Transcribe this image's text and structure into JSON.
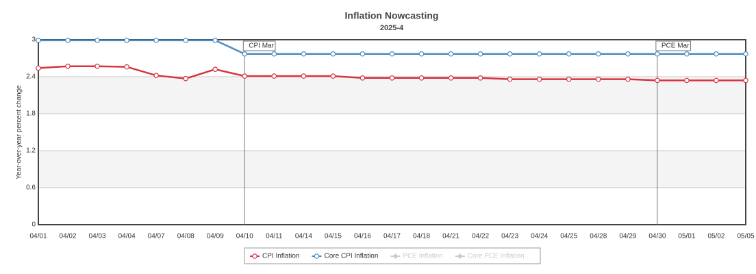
{
  "chart_data": {
    "type": "line",
    "title": "Inflation Nowcasting",
    "subtitle": "2025-4",
    "y_label": "Year-over-year percent change",
    "categories": [
      "04/01",
      "04/02",
      "04/03",
      "04/04",
      "04/07",
      "04/08",
      "04/09",
      "04/10",
      "04/11",
      "04/14",
      "04/15",
      "04/16",
      "04/17",
      "04/18",
      "04/21",
      "04/22",
      "04/23",
      "04/24",
      "04/25",
      "04/28",
      "04/29",
      "04/30",
      "05/01",
      "05/02",
      "05/05"
    ],
    "series": [
      {
        "name": "CPI Inflation",
        "color": "#d9333f",
        "values": [
          2.54,
          2.57,
          2.57,
          2.56,
          2.42,
          2.37,
          2.52,
          2.41,
          2.41,
          2.41,
          2.41,
          2.38,
          2.38,
          2.38,
          2.38,
          2.38,
          2.36,
          2.36,
          2.36,
          2.36,
          2.36,
          2.34,
          2.34,
          2.34,
          2.34
        ]
      },
      {
        "name": "Core CPI Inflation",
        "color": "#4a8cc4",
        "values": [
          2.99,
          2.99,
          2.99,
          2.99,
          2.99,
          2.99,
          2.99,
          2.77,
          2.77,
          2.77,
          2.77,
          2.77,
          2.77,
          2.77,
          2.77,
          2.77,
          2.77,
          2.77,
          2.77,
          2.77,
          2.77,
          2.77,
          2.77,
          2.77,
          2.77
        ]
      },
      {
        "name": "PCE Inflation",
        "color": "#cccccc",
        "visible": false
      },
      {
        "name": "Core PCE Inflation",
        "color": "#cccccc",
        "visible": false
      }
    ],
    "annotations": [
      {
        "label": "CPI Mar",
        "category": "04/10"
      },
      {
        "label": "PCE Mar",
        "category": "04/30"
      }
    ],
    "ylim": [
      0,
      3
    ],
    "yticks": [
      0,
      0.6,
      1.2,
      1.8,
      2.4,
      3
    ],
    "grid": true,
    "alternate_bands": true,
    "legend": "bottom"
  }
}
